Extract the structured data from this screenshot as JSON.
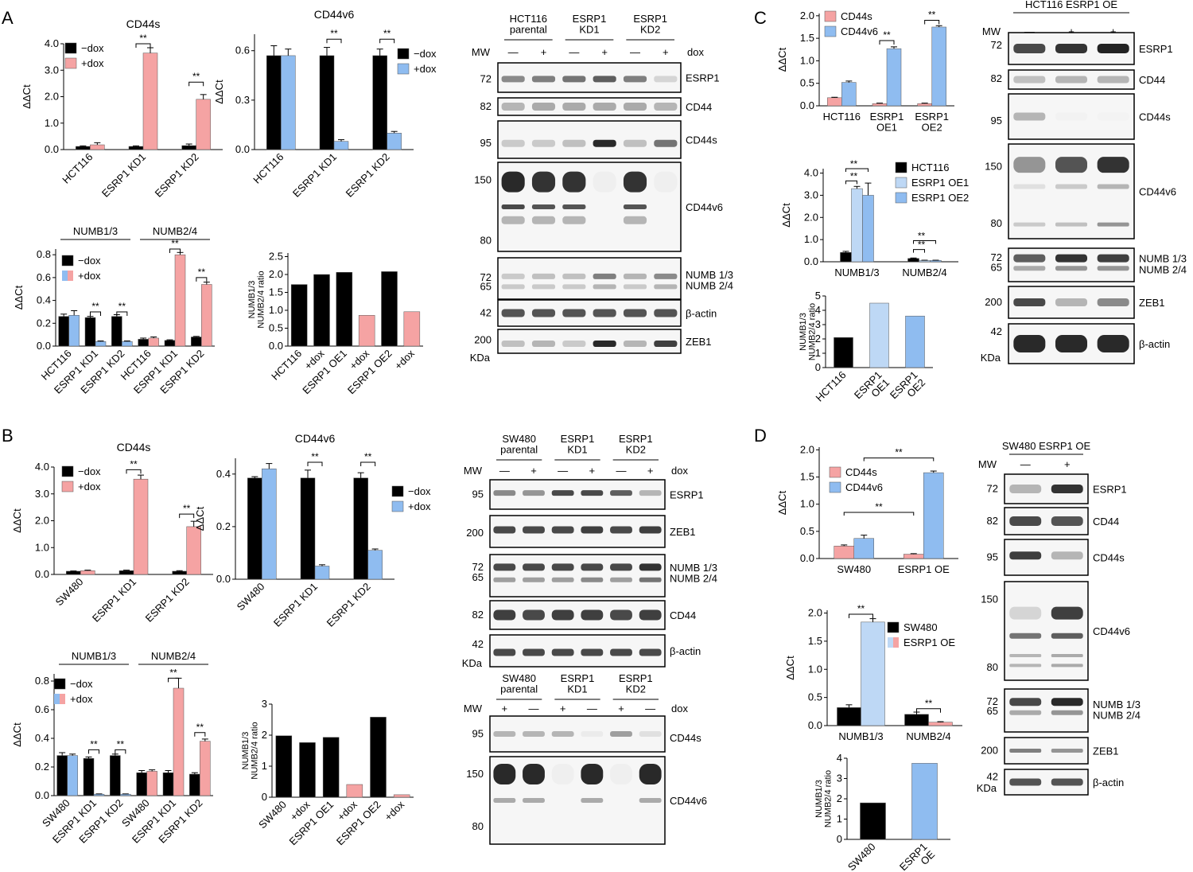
{
  "colors": {
    "black": "#000000",
    "pink": "#f5a3a3",
    "blue": "#8fbcf0",
    "lightblue": "#bed8f5",
    "band": "#1e1e1e"
  },
  "panels": {
    "A": "A",
    "B": "B",
    "C": "C",
    "D": "D"
  },
  "chart_data": [
    {
      "id": "A-cd44s",
      "type": "bar",
      "title": "CD44s",
      "ylabel": "ΔΔCt",
      "ylim": [
        0,
        4.0
      ],
      "yticks": [
        0.0,
        1.0,
        2.0,
        3.0,
        4.0
      ],
      "ytick_labels": [
        "0.0",
        "1.0",
        "2.0",
        "3.0",
        "4.0"
      ],
      "categories": [
        "HCT116",
        "ESRP1 KD1",
        "ESRP1 KD2"
      ],
      "series": [
        {
          "name": "−dox",
          "color": "#000000",
          "values": [
            0.12,
            0.12,
            0.15
          ]
        },
        {
          "name": "+dox",
          "color": "#f5a3a3",
          "values": [
            0.18,
            3.65,
            1.9
          ]
        }
      ],
      "errors": [
        [
          0.02,
          0.02,
          0.06
        ],
        [
          0.08,
          0.2,
          0.18
        ]
      ],
      "annotations": [
        {
          "category": 1,
          "text": "**"
        },
        {
          "category": 2,
          "text": "**"
        }
      ],
      "legend": "top-left"
    },
    {
      "id": "A-cd44v6",
      "type": "bar",
      "title": "CD44v6",
      "ylabel": "ΔΔCt",
      "ylim": [
        0,
        0.7
      ],
      "yticks": [
        0.0,
        0.3,
        0.6
      ],
      "ytick_labels": [
        "0.0",
        "0.3",
        "0.6"
      ],
      "categories": [
        "HCT116",
        "ESRP1 KD1",
        "ESRP1 KD2"
      ],
      "series": [
        {
          "name": "−dox",
          "color": "#000000",
          "values": [
            0.57,
            0.57,
            0.57
          ]
        },
        {
          "name": "+dox",
          "color": "#8fbcf0",
          "values": [
            0.57,
            0.05,
            0.1
          ]
        }
      ],
      "errors": [
        [
          0.06,
          0.05,
          0.04
        ],
        [
          0.04,
          0.01,
          0.01
        ]
      ],
      "annotations": [
        {
          "category": 1,
          "text": "**"
        },
        {
          "category": 2,
          "text": "**"
        }
      ],
      "legend": "right"
    },
    {
      "id": "A-numb",
      "type": "bar",
      "ylabel": "ΔΔCt",
      "ylim": [
        0,
        0.85
      ],
      "yticks": [
        0.0,
        0.2,
        0.4,
        0.6,
        0.8
      ],
      "ytick_labels": [
        "0.0",
        "0.2",
        "0.4",
        "0.6",
        "0.8"
      ],
      "groups": [
        "NUMB1/3",
        "NUMB2/4"
      ],
      "categories": [
        "HCT116",
        "ESRP1 KD1",
        "ESRP1 KD2",
        "HCT116",
        "ESRP1 KD1",
        "ESRP1 KD2"
      ],
      "series": [
        {
          "name": "−dox",
          "values": [
            0.26,
            0.25,
            0.26,
            0.06,
            0.05,
            0.08
          ]
        },
        {
          "name": "+dox",
          "values": [
            0.27,
            0.04,
            0.04,
            0.07,
            0.8,
            0.54
          ]
        }
      ],
      "errors": [
        [
          0.02,
          0.01,
          0.015,
          0.01,
          0.005,
          0.005
        ],
        [
          0.04,
          0.005,
          0.005,
          0.01,
          0.02,
          0.02
        ]
      ],
      "second_colors": [
        "#8fbcf0",
        "#8fbcf0",
        "#8fbcf0",
        "#f5a3a3",
        "#f5a3a3",
        "#f5a3a3"
      ],
      "annotations": [
        {
          "category": 1,
          "text": "**"
        },
        {
          "category": 2,
          "text": "**"
        },
        {
          "category": 4,
          "text": "**"
        },
        {
          "category": 5,
          "text": "**"
        }
      ],
      "legend": "top-left"
    },
    {
      "id": "A-ratio",
      "type": "bar",
      "ylabel": "NUMB1/3\nNUMB2/4 ratio",
      "ylim": [
        0,
        2.6
      ],
      "yticks": [
        0,
        0.5,
        1.0,
        1.5,
        2.0,
        2.5
      ],
      "ytick_labels": [
        "0.0",
        "0.5",
        "1.0",
        "1.5",
        "2.0",
        "2.5"
      ],
      "categories": [
        "HCT116",
        "+dox",
        "ESRP1 OE1",
        "+dox",
        "ESRP1 OE2",
        "+dox"
      ],
      "values": [
        1.72,
        2.0,
        2.06,
        0.86,
        2.08,
        0.96
      ],
      "colors": [
        "#000000",
        "#000000",
        "#000000",
        "#f5a3a3",
        "#000000",
        "#f5a3a3"
      ]
    },
    {
      "id": "B-cd44s",
      "type": "bar",
      "title": "CD44s",
      "ylabel": "ΔΔCt",
      "ylim": [
        0,
        4.0
      ],
      "yticks": [
        0.0,
        1.0,
        2.0,
        3.0,
        4.0
      ],
      "ytick_labels": [
        "0.0",
        "1.0",
        "2.0",
        "3.0",
        "4.0"
      ],
      "categories": [
        "SW480",
        "ESRP1 KD1",
        "ESRP1 KD2"
      ],
      "series": [
        {
          "name": "−dox",
          "color": "#000000",
          "values": [
            0.12,
            0.14,
            0.12
          ]
        },
        {
          "name": "+dox",
          "color": "#f5a3a3",
          "values": [
            0.14,
            3.55,
            1.78
          ]
        }
      ],
      "errors": [
        [
          0.01,
          0.02,
          0.02
        ],
        [
          0.02,
          0.15,
          0.2
        ]
      ],
      "annotations": [
        {
          "category": 1,
          "text": "**"
        },
        {
          "category": 2,
          "text": "**"
        }
      ],
      "legend": "top-left"
    },
    {
      "id": "B-cd44v6",
      "type": "bar",
      "title": "CD44v6",
      "ylabel": "ΔΔCt",
      "ylim": [
        0,
        0.46
      ],
      "yticks": [
        0.0,
        0.2,
        0.4
      ],
      "ytick_labels": [
        "0.0",
        "0.2",
        "0.4"
      ],
      "categories": [
        "SW480",
        "ESRP1 KD1",
        "ESRP1 KD2"
      ],
      "series": [
        {
          "name": "−dox",
          "color": "#000000",
          "values": [
            0.385,
            0.385,
            0.385
          ]
        },
        {
          "name": "+dox",
          "color": "#8fbcf0",
          "values": [
            0.42,
            0.05,
            0.11
          ]
        }
      ],
      "errors": [
        [
          0.005,
          0.03,
          0.02
        ],
        [
          0.02,
          0.005,
          0.005
        ]
      ],
      "annotations": [
        {
          "category": 1,
          "text": "**"
        },
        {
          "category": 2,
          "text": "**"
        }
      ],
      "legend": "right"
    },
    {
      "id": "B-numb",
      "type": "bar",
      "ylabel": "ΔΔCt",
      "ylim": [
        0,
        0.85
      ],
      "yticks": [
        0.0,
        0.2,
        0.4,
        0.6,
        0.8
      ],
      "ytick_labels": [
        "0.0",
        "0.2",
        "0.4",
        "0.6",
        "0.8"
      ],
      "groups": [
        "NUMB1/3",
        "NUMB2/4"
      ],
      "categories": [
        "SW480",
        "ESRP1 KD1",
        "ESRP1 KD2",
        "SW480",
        "ESRP1 KD1",
        "ESRP1 KD2"
      ],
      "series": [
        {
          "name": "−dox",
          "values": [
            0.28,
            0.26,
            0.28,
            0.16,
            0.16,
            0.15
          ]
        },
        {
          "name": "+dox",
          "values": [
            0.28,
            0.01,
            0.01,
            0.17,
            0.75,
            0.38
          ]
        }
      ],
      "errors": [
        [
          0.02,
          0.01,
          0.01,
          0.015,
          0.015,
          0.01
        ],
        [
          0.01,
          0.002,
          0.002,
          0.01,
          0.07,
          0.015
        ]
      ],
      "second_colors": [
        "#8fbcf0",
        "#8fbcf0",
        "#8fbcf0",
        "#f5a3a3",
        "#f5a3a3",
        "#f5a3a3"
      ],
      "annotations": [
        {
          "category": 1,
          "text": "**"
        },
        {
          "category": 2,
          "text": "**"
        },
        {
          "category": 4,
          "text": "**"
        },
        {
          "category": 5,
          "text": "**"
        }
      ],
      "legend": "top-left"
    },
    {
      "id": "B-ratio",
      "type": "bar",
      "ylabel": "NUMB1/3\nNUMB2/4 ratio",
      "ylim": [
        0,
        3
      ],
      "yticks": [
        0,
        1,
        2,
        3
      ],
      "ytick_labels": [
        "0",
        "1",
        "2",
        "3"
      ],
      "categories": [
        "SW480",
        "+dox",
        "ESRP1 OE1",
        "+dox",
        "ESRP1 OE2",
        "+dox"
      ],
      "values": [
        1.98,
        1.76,
        1.93,
        0.41,
        2.58,
        0.08
      ],
      "colors": [
        "#000000",
        "#000000",
        "#000000",
        "#f5a3a3",
        "#000000",
        "#f5a3a3"
      ]
    },
    {
      "id": "C-cd44",
      "type": "bar",
      "ylabel": "ΔΔCt",
      "ylim": [
        0,
        2.05
      ],
      "yticks": [
        0.0,
        0.5,
        1.0,
        1.5,
        2.0
      ],
      "ytick_labels": [
        "0.0",
        "0.5",
        "1.0",
        "1.5",
        "2.0"
      ],
      "categories": [
        "HCT116",
        "ESRP1\nOE1",
        "ESRP1\nOE2"
      ],
      "series": [
        {
          "name": "CD44s",
          "color": "#f5a3a3",
          "values": [
            0.18,
            0.05,
            0.05
          ]
        },
        {
          "name": "CD44v6",
          "color": "#8fbcf0",
          "values": [
            0.52,
            1.27,
            1.75
          ]
        }
      ],
      "errors": [
        [
          0.01,
          0.01,
          0.01
        ],
        [
          0.03,
          0.04,
          0.03
        ]
      ],
      "annotations": [
        {
          "category": 1,
          "text": "**"
        },
        {
          "category": 2,
          "text": "**"
        }
      ],
      "legend": "top-left"
    },
    {
      "id": "C-numb",
      "type": "bar",
      "ylabel": "ΔΔCt",
      "ylim": [
        0,
        4.2
      ],
      "yticks": [
        0.0,
        1.0,
        2.0,
        3.0,
        4.0
      ],
      "ytick_labels": [
        "0.0",
        "1.0",
        "2.0",
        "3.0",
        "4.0"
      ],
      "categories": [
        "NUMB1/3",
        "NUMB2/4"
      ],
      "series": [
        {
          "name": "HCT116",
          "color": "#000000",
          "values": [
            0.42,
            0.15
          ]
        },
        {
          "name": "ESRP1 OE1",
          "color": "#bed8f5",
          "values": [
            3.3,
            0.06
          ]
        },
        {
          "name": "ESRP1 OE2",
          "color": "#8fbcf0",
          "values": [
            3.0,
            0.06
          ]
        }
      ],
      "errors": [
        [
          0.05,
          0.02
        ],
        [
          0.1,
          0.01
        ],
        [
          0.55,
          0.01
        ]
      ],
      "annotations": [
        {
          "text": "**"
        },
        {
          "text": "**"
        },
        {
          "text": "**"
        },
        {
          "text": "**"
        }
      ],
      "legend": "right"
    },
    {
      "id": "C-ratio",
      "type": "bar",
      "ylabel": "NUMB1/3\nNUMB2/4 ratio",
      "ylim": [
        0,
        5
      ],
      "yticks": [
        0,
        1,
        2,
        3,
        4,
        5
      ],
      "ytick_labels": [
        "0",
        "1",
        "2",
        "3",
        "4",
        "5"
      ],
      "categories": [
        "HCT116",
        "ESRP1\nOE1",
        "ESRP1\nOE2"
      ],
      "values": [
        2.1,
        4.5,
        3.6
      ],
      "colors": [
        "#000000",
        "#bed8f5",
        "#8fbcf0"
      ]
    },
    {
      "id": "D-cd44",
      "type": "bar",
      "ylabel": "ΔΔCt",
      "ylim": [
        0,
        2.05
      ],
      "yticks": [
        0.0,
        0.5,
        1.0,
        1.5,
        2.0
      ],
      "ytick_labels": [
        "0.0",
        "0.5",
        "1.0",
        "1.5",
        "2.0"
      ],
      "categories": [
        "SW480",
        "ESRP1 OE"
      ],
      "series": [
        {
          "name": "CD44s",
          "color": "#f5a3a3",
          "values": [
            0.23,
            0.08
          ]
        },
        {
          "name": "CD44v6",
          "color": "#8fbcf0",
          "values": [
            0.37,
            1.58
          ]
        }
      ],
      "errors": [
        [
          0.02,
          0.01
        ],
        [
          0.06,
          0.03
        ]
      ],
      "annotations": [
        {
          "text": "**"
        },
        {
          "text": "**"
        }
      ],
      "legend": "top-left"
    },
    {
      "id": "D-numb",
      "type": "bar",
      "ylabel": "ΔΔCt",
      "ylim": [
        0,
        2.05
      ],
      "yticks": [
        0.0,
        0.5,
        1.0,
        1.5,
        2.0
      ],
      "ytick_labels": [
        "0.0",
        "0.5",
        "1.0",
        "1.5",
        "2.0"
      ],
      "categories": [
        "NUMB1/3",
        "NUMB2/4"
      ],
      "series": [
        {
          "name": "SW480",
          "color": "#000000",
          "values": [
            0.32,
            0.2
          ]
        },
        {
          "name": "ESRP1 OE",
          "color": "#bed8f5",
          "values": [
            1.84,
            0.06
          ]
        }
      ],
      "second_colors": [
        "#bed8f5",
        "#f5a3a3"
      ],
      "errors": [
        [
          0.05,
          0.04
        ],
        [
          0.06,
          0.01
        ]
      ],
      "annotations": [
        {
          "category": 0,
          "text": "**"
        },
        {
          "category": 1,
          "text": "**"
        }
      ],
      "legend": "right"
    },
    {
      "id": "D-ratio",
      "type": "bar",
      "ylabel": "NUMB1/3\nNUMB2/4 ratio",
      "ylim": [
        0,
        4
      ],
      "yticks": [
        0,
        1,
        2,
        3,
        4
      ],
      "ytick_labels": [
        "0",
        "1",
        "2",
        "3",
        "4"
      ],
      "categories": [
        "SW480",
        "ESRP1\nOE"
      ],
      "values": [
        1.8,
        3.75
      ],
      "colors": [
        "#000000",
        "#8fbcf0"
      ]
    }
  ],
  "blots": [
    {
      "id": "A-blot",
      "groups": [
        "HCT116\nparental",
        "ESRP1\nKD1",
        "ESRP1\nKD2"
      ],
      "mw_label": "MW",
      "lanes": [
        "—",
        "+",
        "—",
        "+",
        "—",
        "+"
      ],
      "dox": "dox",
      "unit": "KDa",
      "rows": [
        {
          "protein": "ESRP1",
          "mw": "72"
        },
        {
          "protein": "CD44",
          "mw": "82"
        },
        {
          "protein": "CD44s",
          "mw": "95"
        },
        {
          "protein": "CD44v6",
          "mw": "150",
          "mw2": "80"
        },
        {
          "protein": "NUMB 1/3\nNUMB 2/4",
          "mw": "72",
          "mw2": "65"
        },
        {
          "protein": "β-actin",
          "mw": "42"
        },
        {
          "protein": "ZEB1",
          "mw": "200"
        }
      ]
    },
    {
      "id": "B-blot-1",
      "groups": [
        "SW480\nparental",
        "ESRP1\nKD1",
        "ESRP1\nKD2"
      ],
      "mw_label": "MW",
      "lanes": [
        "—",
        "+",
        "—",
        "+",
        "—",
        "+"
      ],
      "dox": "dox",
      "unit": "KDa",
      "rows": [
        {
          "protein": "ESRP1",
          "mw": "95"
        },
        {
          "protein": "ZEB1",
          "mw": "200"
        },
        {
          "protein": "NUMB 1/3\nNUMB 2/4",
          "mw": "72",
          "mw2": "65"
        },
        {
          "protein": "CD44",
          "mw": "82"
        },
        {
          "protein": "β-actin",
          "mw": "42"
        }
      ]
    },
    {
      "id": "B-blot-2",
      "groups": [
        "SW480\nparental",
        "ESRP1\nKD1",
        "ESRP1\nKD2"
      ],
      "mw_label": "MW",
      "lanes": [
        "+",
        "—",
        "+",
        "—",
        "+",
        "—"
      ],
      "dox": "dox",
      "rows": [
        {
          "protein": "CD44s",
          "mw": "95"
        },
        {
          "protein": "CD44v6",
          "mw": "150",
          "mw2": "80"
        }
      ]
    },
    {
      "id": "C-blot",
      "title": "HCT116 ESRP1 OE",
      "mw_label": "MW",
      "lanes": [
        "—",
        "+",
        "+"
      ],
      "unit": "KDa",
      "rows": [
        {
          "protein": "ESRP1",
          "mw": "72"
        },
        {
          "protein": "CD44",
          "mw": "82"
        },
        {
          "protein": "CD44s",
          "mw": "95"
        },
        {
          "protein": "CD44v6",
          "mw": "150",
          "mw2": "80"
        },
        {
          "protein": "NUMB 1/3\nNUMB 2/4",
          "mw": "72",
          "mw2": "65"
        },
        {
          "protein": "ZEB1",
          "mw": "200"
        },
        {
          "protein": "β-actin",
          "mw": "42"
        }
      ]
    },
    {
      "id": "D-blot",
      "title": "SW480 ESRP1 OE",
      "mw_label": "MW",
      "lanes": [
        "—",
        "+"
      ],
      "unit": "KDa",
      "rows": [
        {
          "protein": "ESRP1",
          "mw": "72"
        },
        {
          "protein": "CD44",
          "mw": "82"
        },
        {
          "protein": "CD44s",
          "mw": "95"
        },
        {
          "protein": "CD44v6",
          "mw": "150",
          "mw2": "80"
        },
        {
          "protein": "NUMB 1/3\nNUMB 2/4",
          "mw": "72",
          "mw2": "65"
        },
        {
          "protein": "ZEB1",
          "mw": "200"
        },
        {
          "protein": "β-actin",
          "mw": "42"
        }
      ]
    }
  ]
}
